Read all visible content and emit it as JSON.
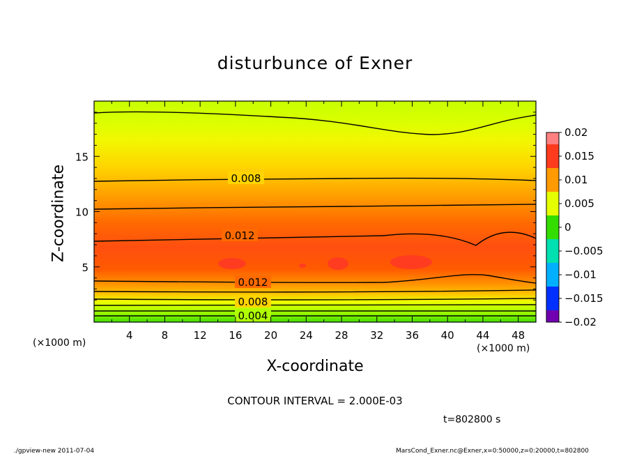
{
  "chart_data": {
    "type": "contour",
    "title": "disturbunce of Exner",
    "xlabel": "X-coordinate",
    "ylabel": "Z-coordinate",
    "x_unit": "(×1000 m)",
    "y_unit": "(×1000 m)",
    "xlim": [
      0,
      50
    ],
    "ylim": [
      0,
      20
    ],
    "x_ticks": [
      4,
      8,
      12,
      16,
      20,
      24,
      28,
      32,
      36,
      40,
      44,
      48
    ],
    "y_ticks": [
      5,
      10,
      15
    ],
    "colorbar": {
      "ticks": [
        "0.02",
        "0.015",
        "0.01",
        "0.005",
        "0",
        "−0.005",
        "−0.01",
        "−0.015",
        "−0.02"
      ],
      "range": [
        -0.02,
        0.02
      ],
      "colors": [
        "#ff8080",
        "#ff3b1e",
        "#ff9a00",
        "#e5ff00",
        "#33dd00",
        "#00e0b0",
        "#00b0ff",
        "#0030ff",
        "#7000b0"
      ]
    },
    "contour_labels": [
      {
        "text": "0.008",
        "x": 17.5,
        "z": 12.8
      },
      {
        "text": "0.012",
        "x": 16.5,
        "z": 7.8
      },
      {
        "text": "0.012",
        "x": 18,
        "z": 3.7
      },
      {
        "text": "0.008",
        "x": 18,
        "z": 1.9
      },
      {
        "text": "0.004",
        "x": 18,
        "z": 0.7
      }
    ],
    "contour_interval": "CONTOUR INTERVAL = 2.000E-03",
    "time": "t=802800 s"
  },
  "footer": {
    "left": "./gpview-new   2011-07-04",
    "right": "MarsCond_Exner.nc@Exner,x=0:50000,z=0:20000,t=802800"
  }
}
